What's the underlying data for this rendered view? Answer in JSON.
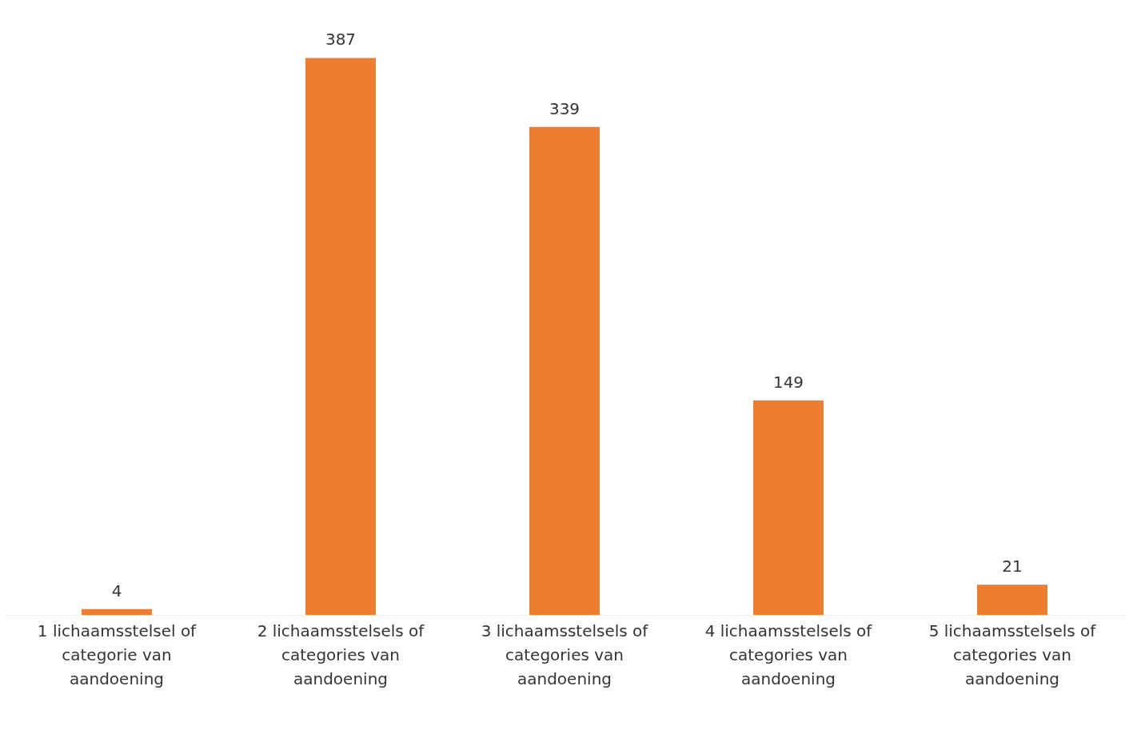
{
  "chart_data": {
    "type": "bar",
    "categories": [
      "1 lichaamsstelsel of categorie van aandoening",
      "2 lichaamsstelsels of categories van aandoening",
      "3 lichaamsstelsels of categories van aandoening",
      "4 lichaamsstelsels of categories van aandoening",
      "5 lichaamsstelsels of categories van aandoening"
    ],
    "values": [
      4,
      387,
      339,
      149,
      21
    ],
    "color": "#ed7d31",
    "data_labels": true
  }
}
